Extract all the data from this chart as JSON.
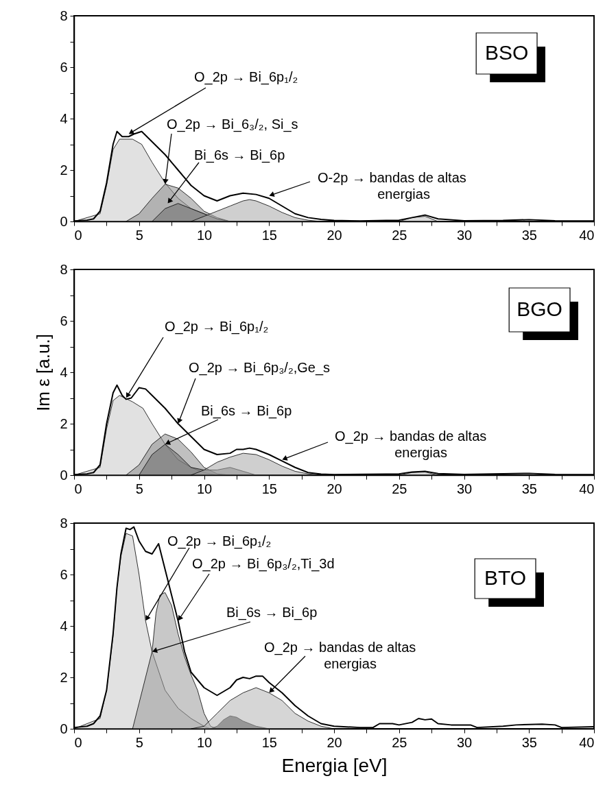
{
  "chart_data": [
    {
      "type": "line",
      "title": "BSO",
      "xlim": [
        0,
        40
      ],
      "ylim": [
        0,
        8
      ],
      "xticks": [
        0,
        {
          "value": 2.5,
          "label": null
        },
        5,
        {
          "value": 7.5,
          "label": null
        },
        10,
        {
          "value": 12.5,
          "label": null
        },
        15,
        {
          "value": 17.5,
          "label": null
        },
        20,
        {
          "value": 22.5,
          "label": null
        },
        25,
        {
          "value": 27.5,
          "label": null
        },
        30,
        {
          "value": 32.5,
          "label": null
        },
        35,
        {
          "value": 37.5,
          "label": null
        },
        40
      ],
      "yticks": [
        0,
        {
          "value": 1,
          "label": null
        },
        2,
        {
          "value": 3,
          "label": null
        },
        4,
        {
          "value": 5,
          "label": null
        },
        6,
        {
          "value": 7,
          "label": null
        },
        8
      ],
      "series": [
        {
          "type": "area",
          "color": "#c8c8c8",
          "x": [
            0,
            2,
            2.5,
            3,
            3.5,
            4.5,
            5.2,
            6,
            7,
            8,
            9,
            10,
            11,
            12
          ],
          "values": [
            0,
            0.3,
            1.4,
            2.8,
            3.2,
            3.2,
            3.0,
            2.3,
            1.5,
            0.9,
            0.5,
            0.3,
            0.1,
            0
          ]
        },
        {
          "type": "area",
          "color": "#8c8c8c",
          "x": [
            4,
            5,
            6,
            7,
            8,
            9,
            10,
            11,
            12
          ],
          "values": [
            0,
            0.3,
            0.9,
            1.45,
            1.3,
            0.9,
            0.4,
            0.15,
            0
          ]
        },
        {
          "type": "area",
          "color": "#6e6e6e",
          "x": [
            6,
            7,
            8,
            9,
            10,
            11,
            12
          ],
          "values": [
            0,
            0.5,
            0.7,
            0.5,
            0.3,
            0.1,
            0
          ]
        },
        {
          "type": "area",
          "color": "#a8a8a8",
          "x": [
            9,
            10,
            11,
            12,
            13,
            13.5,
            14,
            15,
            16,
            17,
            18,
            19
          ],
          "values": [
            0,
            0.2,
            0.4,
            0.6,
            0.8,
            0.85,
            0.8,
            0.6,
            0.35,
            0.15,
            0.05,
            0
          ]
        },
        {
          "type": "area",
          "color": "#bdbdbd",
          "x": [
            25,
            26,
            27,
            28
          ],
          "values": [
            0,
            0.15,
            0.2,
            0
          ]
        },
        {
          "color": "#000000",
          "x": [
            0,
            1,
            1.5,
            2,
            2.5,
            3,
            3.3,
            3.7,
            4.2,
            4.6,
            5.2,
            6,
            7,
            8,
            9,
            10,
            11,
            12,
            13,
            14,
            15,
            16,
            17,
            18,
            19,
            20,
            22,
            24,
            25,
            26,
            27,
            28,
            30,
            33,
            35,
            37,
            40
          ],
          "values": [
            0.02,
            0.05,
            0.1,
            0.4,
            1.5,
            3.0,
            3.5,
            3.3,
            3.3,
            3.4,
            3.5,
            3.1,
            2.6,
            2.0,
            1.4,
            1.0,
            0.8,
            1.0,
            1.1,
            1.05,
            0.9,
            0.6,
            0.3,
            0.15,
            0.08,
            0.04,
            0.02,
            0.04,
            0.05,
            0.15,
            0.25,
            0.1,
            0.03,
            0.04,
            0.07,
            0.03,
            0.02
          ]
        }
      ],
      "annotations": [
        {
          "text": "O_2p → Bi_6p₁/₂",
          "x": 4.2,
          "y": 3.4
        },
        {
          "text": "O_2p → Bi_6₃/₂, Si_s",
          "x": 7,
          "y": 1.45
        },
        {
          "text": "Bi_6s → Bi_6p",
          "x": 7.2,
          "y": 0.7
        },
        {
          "text": "O-2p → bandas de altas\nenergias",
          "x": 15,
          "y": 1.0
        }
      ]
    },
    {
      "type": "line",
      "title": "BGO",
      "ylabel": "Im ε [a.u.]",
      "xlim": [
        0,
        40
      ],
      "ylim": [
        0,
        8
      ],
      "xticks": [
        0,
        {
          "value": 2.5,
          "label": null
        },
        5,
        {
          "value": 7.5,
          "label": null
        },
        10,
        {
          "value": 12.5,
          "label": null
        },
        15,
        {
          "value": 17.5,
          "label": null
        },
        20,
        {
          "value": 22.5,
          "label": null
        },
        25,
        {
          "value": 27.5,
          "label": null
        },
        30,
        {
          "value": 32.5,
          "label": null
        },
        35,
        {
          "value": 37.5,
          "label": null
        },
        40
      ],
      "yticks": [
        0,
        {
          "value": 1,
          "label": null
        },
        2,
        {
          "value": 3,
          "label": null
        },
        4,
        {
          "value": 5,
          "label": null
        },
        6,
        {
          "value": 7,
          "label": null
        },
        8
      ],
      "series": [
        {
          "type": "area",
          "color": "#c8c8c8",
          "x": [
            0,
            2,
            2.5,
            3,
            3.5,
            4.5,
            5.3,
            6,
            7,
            8,
            9,
            10,
            11
          ],
          "values": [
            0,
            0.3,
            1.8,
            2.9,
            3.1,
            2.85,
            2.6,
            2.0,
            1.2,
            0.6,
            0.3,
            0.1,
            0
          ]
        },
        {
          "type": "area",
          "color": "#8c8c8c",
          "x": [
            4,
            5,
            6,
            7,
            8,
            9,
            10,
            11,
            12
          ],
          "values": [
            0,
            0.4,
            1.2,
            1.6,
            1.4,
            0.9,
            0.3,
            0.05,
            0
          ]
        },
        {
          "type": "area",
          "color": "#6e6e6e",
          "x": [
            5,
            6,
            7,
            8,
            9,
            10,
            11,
            12,
            13,
            14
          ],
          "values": [
            0,
            0.8,
            1.2,
            0.8,
            0.3,
            0.2,
            0.2,
            0.3,
            0.15,
            0
          ]
        },
        {
          "type": "area",
          "color": "#a8a8a8",
          "x": [
            9,
            10,
            11,
            12,
            13,
            14,
            15,
            16,
            17,
            18,
            19
          ],
          "values": [
            0,
            0.2,
            0.5,
            0.7,
            0.85,
            0.8,
            0.6,
            0.35,
            0.15,
            0.05,
            0
          ]
        },
        {
          "type": "area",
          "color": "#bdbdbd",
          "x": [
            25,
            26,
            27,
            28
          ],
          "values": [
            0,
            0.1,
            0.12,
            0
          ]
        },
        {
          "color": "#000000",
          "x": [
            0,
            1,
            1.5,
            2,
            2.5,
            3,
            3.3,
            3.7,
            4,
            4.4,
            5,
            5.5,
            6,
            7,
            8,
            9,
            10,
            11,
            12,
            12.5,
            13,
            13.5,
            14,
            15,
            16,
            17,
            18,
            19,
            20,
            24,
            25,
            26,
            27,
            28,
            30,
            35,
            37,
            40
          ],
          "values": [
            0.02,
            0.05,
            0.1,
            0.4,
            2.0,
            3.2,
            3.5,
            3.1,
            2.95,
            3.0,
            3.4,
            3.35,
            3.1,
            2.6,
            2.0,
            1.5,
            1.0,
            0.8,
            0.85,
            1.0,
            1.0,
            1.05,
            1.0,
            0.8,
            0.55,
            0.3,
            0.1,
            0.04,
            0.02,
            0.04,
            0.05,
            0.12,
            0.15,
            0.06,
            0.03,
            0.07,
            0.03,
            0.02
          ]
        }
      ],
      "annotations": [
        {
          "text": "O_2p → Bi_6p₁/₂",
          "x": 4,
          "y": 3.0
        },
        {
          "text": "O_2p → Bi_6p₃/₂,Ge_s",
          "x": 8,
          "y": 2.0
        },
        {
          "text": "Bi_6s → Bi_6p",
          "x": 7,
          "y": 1.2
        },
        {
          "text": "O_2p → bandas de altas\nenergias",
          "x": 16,
          "y": 0.6
        }
      ]
    },
    {
      "type": "line",
      "title": "BTO",
      "xlabel": "Energia [eV]",
      "xlim": [
        0,
        40
      ],
      "ylim": [
        0,
        8
      ],
      "xticks": [
        0,
        {
          "value": 2.5,
          "label": null
        },
        5,
        {
          "value": 7.5,
          "label": null
        },
        10,
        {
          "value": 12.5,
          "label": null
        },
        15,
        {
          "value": 17.5,
          "label": null
        },
        20,
        {
          "value": 22.5,
          "label": null
        },
        25,
        {
          "value": 27.5,
          "label": null
        },
        30,
        {
          "value": 32.5,
          "label": null
        },
        35,
        {
          "value": 37.5,
          "label": null
        },
        40
      ],
      "yticks": [
        0,
        {
          "value": 1,
          "label": null
        },
        2,
        {
          "value": 3,
          "label": null
        },
        4,
        {
          "value": 5,
          "label": null
        },
        6,
        {
          "value": 7,
          "label": null
        },
        8
      ],
      "series": [
        {
          "type": "area",
          "color": "#c8c8c8",
          "x": [
            0,
            2,
            2.5,
            3,
            3.3,
            3.6,
            4,
            4.5,
            5,
            5.5,
            6,
            7,
            8,
            9,
            10,
            10.5
          ],
          "values": [
            0,
            0.4,
            1.5,
            3.6,
            5.5,
            6.7,
            7.6,
            7.5,
            6.0,
            4.2,
            3.0,
            1.5,
            0.8,
            0.4,
            0.1,
            0
          ]
        },
        {
          "type": "area",
          "color": "#9a9a9a",
          "x": [
            4.5,
            5,
            5.5,
            6,
            6.3,
            6.6,
            7,
            7.5,
            8,
            8.5,
            9,
            9.5,
            10,
            10.5,
            11
          ],
          "values": [
            0,
            1.0,
            2.0,
            3.0,
            4.5,
            5.2,
            5.3,
            4.8,
            3.7,
            2.8,
            2.1,
            1.5,
            0.6,
            0.1,
            0
          ]
        },
        {
          "type": "area",
          "color": "#000000",
          "x": [
            10.5,
            11,
            11.5,
            12,
            12.5,
            13,
            14,
            15
          ],
          "values": [
            0,
            0.1,
            0.35,
            0.5,
            0.45,
            0.3,
            0.1,
            0
          ]
        },
        {
          "type": "area",
          "color": "#b4b4b4",
          "x": [
            9,
            10,
            11,
            12,
            13,
            14,
            15,
            16,
            17,
            18,
            19,
            20
          ],
          "values": [
            0,
            0.1,
            0.6,
            1.1,
            1.4,
            1.6,
            1.4,
            1.1,
            0.6,
            0.3,
            0.1,
            0
          ]
        },
        {
          "color": "#000000",
          "x": [
            0,
            1,
            1.5,
            2,
            2.5,
            3,
            3.3,
            3.6,
            4,
            4.3,
            4.6,
            5,
            5.5,
            6,
            6.5,
            7,
            7.5,
            8,
            8.5,
            9,
            10,
            11,
            12,
            12.5,
            13,
            13.5,
            14,
            14.5,
            15,
            16,
            17,
            18,
            19,
            20,
            22,
            23,
            23.5,
            24.5,
            25,
            26,
            26.5,
            27,
            27.5,
            28,
            29,
            30,
            30.5,
            31,
            33,
            34,
            36,
            37,
            37.5,
            40
          ],
          "values": [
            0.05,
            0.1,
            0.2,
            0.5,
            1.5,
            3.7,
            5.5,
            6.8,
            7.8,
            7.75,
            7.85,
            7.3,
            6.9,
            6.8,
            7.2,
            6.2,
            5.2,
            4.2,
            3.0,
            2.2,
            1.6,
            1.3,
            1.6,
            1.9,
            2.0,
            1.95,
            2.05,
            2.05,
            1.8,
            1.4,
            0.9,
            0.5,
            0.2,
            0.1,
            0.05,
            0.05,
            0.2,
            0.2,
            0.15,
            0.25,
            0.4,
            0.35,
            0.38,
            0.2,
            0.15,
            0.15,
            0.15,
            0.05,
            0.1,
            0.15,
            0.18,
            0.15,
            0.05,
            0.08
          ]
        }
      ],
      "annotations": [
        {
          "text": "O_2p → Bi_6p₁/₂",
          "x": 5.5,
          "y": 4.2
        },
        {
          "text": "O_2p → Bi_6p₃/₂,Ti_3d",
          "x": 8,
          "y": 4.2
        },
        {
          "text": "Bi_6s → Bi_6p",
          "x": 6,
          "y": 3.0
        },
        {
          "text": "O_2p → bandas de altas\nenergias",
          "x": 15,
          "y": 1.4
        }
      ]
    }
  ]
}
